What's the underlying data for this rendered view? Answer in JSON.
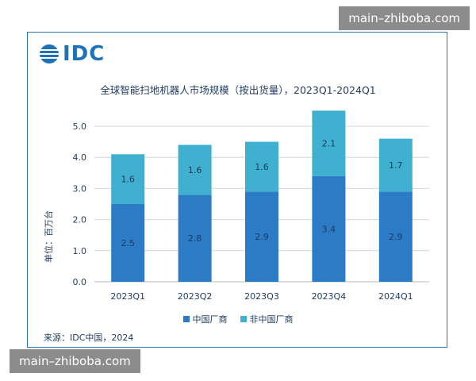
{
  "watermark_text": "main–zhiboba.com",
  "logo_text": "IDC",
  "chart_data": {
    "type": "bar",
    "stacked": true,
    "title": "全球智能扫地机器人市场规模（按出货量），2023Q1-2024Q1",
    "xlabel": "",
    "ylabel": "单位：百万台",
    "categories": [
      "2023Q1",
      "2023Q2",
      "2023Q3",
      "2023Q4",
      "2024Q1"
    ],
    "series": [
      {
        "name": "中国厂商",
        "color": "#2b7bc6",
        "values": [
          2.5,
          2.8,
          2.9,
          3.4,
          2.9
        ]
      },
      {
        "name": "非中国厂商",
        "color": "#3fb0cf",
        "values": [
          1.6,
          1.6,
          1.6,
          2.1,
          1.7
        ]
      }
    ],
    "ylim": [
      0,
      5.0
    ],
    "yticks": [
      "0.0",
      "1.0",
      "2.0",
      "3.0",
      "4.0",
      "5.0"
    ],
    "grid": true,
    "legend_position": "bottom"
  },
  "source_text": "来源：IDC中国，2024"
}
